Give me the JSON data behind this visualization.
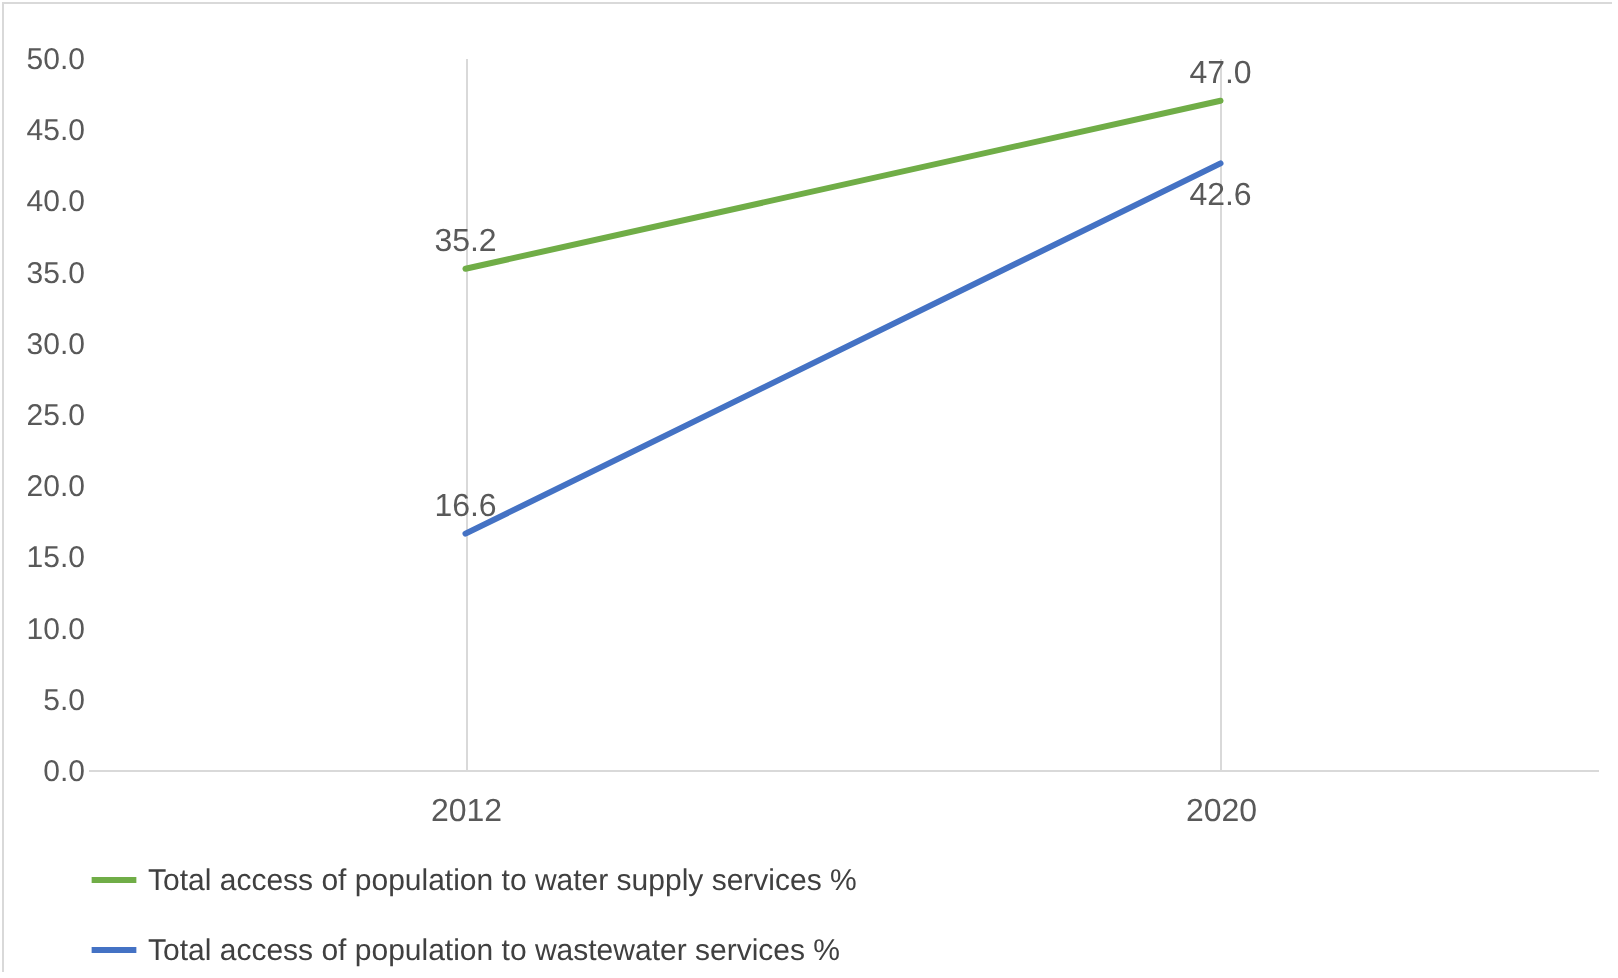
{
  "chart_data": {
    "type": "line",
    "categories": [
      "2012",
      "2020"
    ],
    "series": [
      {
        "name": "Total access of population to water supply services %",
        "color": "#70ad47",
        "values": [
          35.2,
          47.0
        ],
        "value_labels": [
          "35.2",
          "47.0"
        ]
      },
      {
        "name": "Total access of population to wastewater  services %",
        "color": "#4472c4",
        "values": [
          16.6,
          42.6
        ],
        "value_labels": [
          "16.6",
          "42.6"
        ]
      }
    ],
    "ylim": [
      0,
      50
    ],
    "yticks": [
      {
        "value": 0,
        "label": "0.0"
      },
      {
        "value": 5,
        "label": "5.0"
      },
      {
        "value": 10,
        "label": "10.0"
      },
      {
        "value": 15,
        "label": "15.0"
      },
      {
        "value": 20,
        "label": "20.0"
      },
      {
        "value": 25,
        "label": "25.0"
      },
      {
        "value": 30,
        "label": "30.0"
      },
      {
        "value": 35,
        "label": "35.0"
      },
      {
        "value": 40,
        "label": "40.0"
      },
      {
        "value": 45,
        "label": "45.0"
      },
      {
        "value": 50,
        "label": "50.0"
      }
    ],
    "grid": "x",
    "legend": "bottom",
    "marker": "none",
    "line_style": "solid"
  }
}
